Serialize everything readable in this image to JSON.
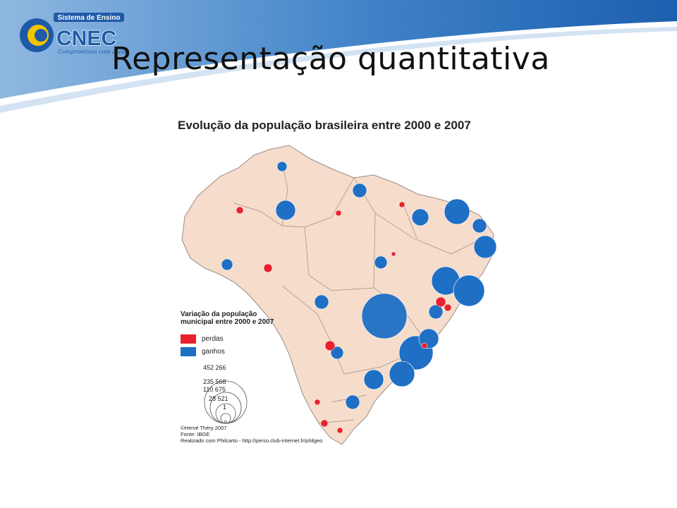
{
  "logo": {
    "top_text": "Sistema de Ensino",
    "brand": "CNEC",
    "tagline": "Compromisso com a vida"
  },
  "slide": {
    "title": "Representação quantitativa"
  },
  "map": {
    "title": "Evolução da população brasileira entre 2000 e 2007",
    "legend": {
      "title": "Variação da população\nmunicipal entre 2000 e 2007",
      "categories": [
        {
          "label": "perdas",
          "color": "#e8212d"
        },
        {
          "label": "ganhos",
          "color": "#1f6fc5"
        }
      ],
      "sizes": [
        "452 266",
        "235 568",
        "110 675",
        "28 521",
        "1"
      ]
    },
    "credits": [
      "©Hervé Théry 2007",
      "Fonte: IBGE",
      "Realizado com Philcarto - http://perso.club-internet.fr/philgeo"
    ],
    "colors": {
      "land": "#f6dccb",
      "border": "#9a8c86",
      "loss": "#e8212d",
      "gain": "#1f6fc5"
    }
  }
}
